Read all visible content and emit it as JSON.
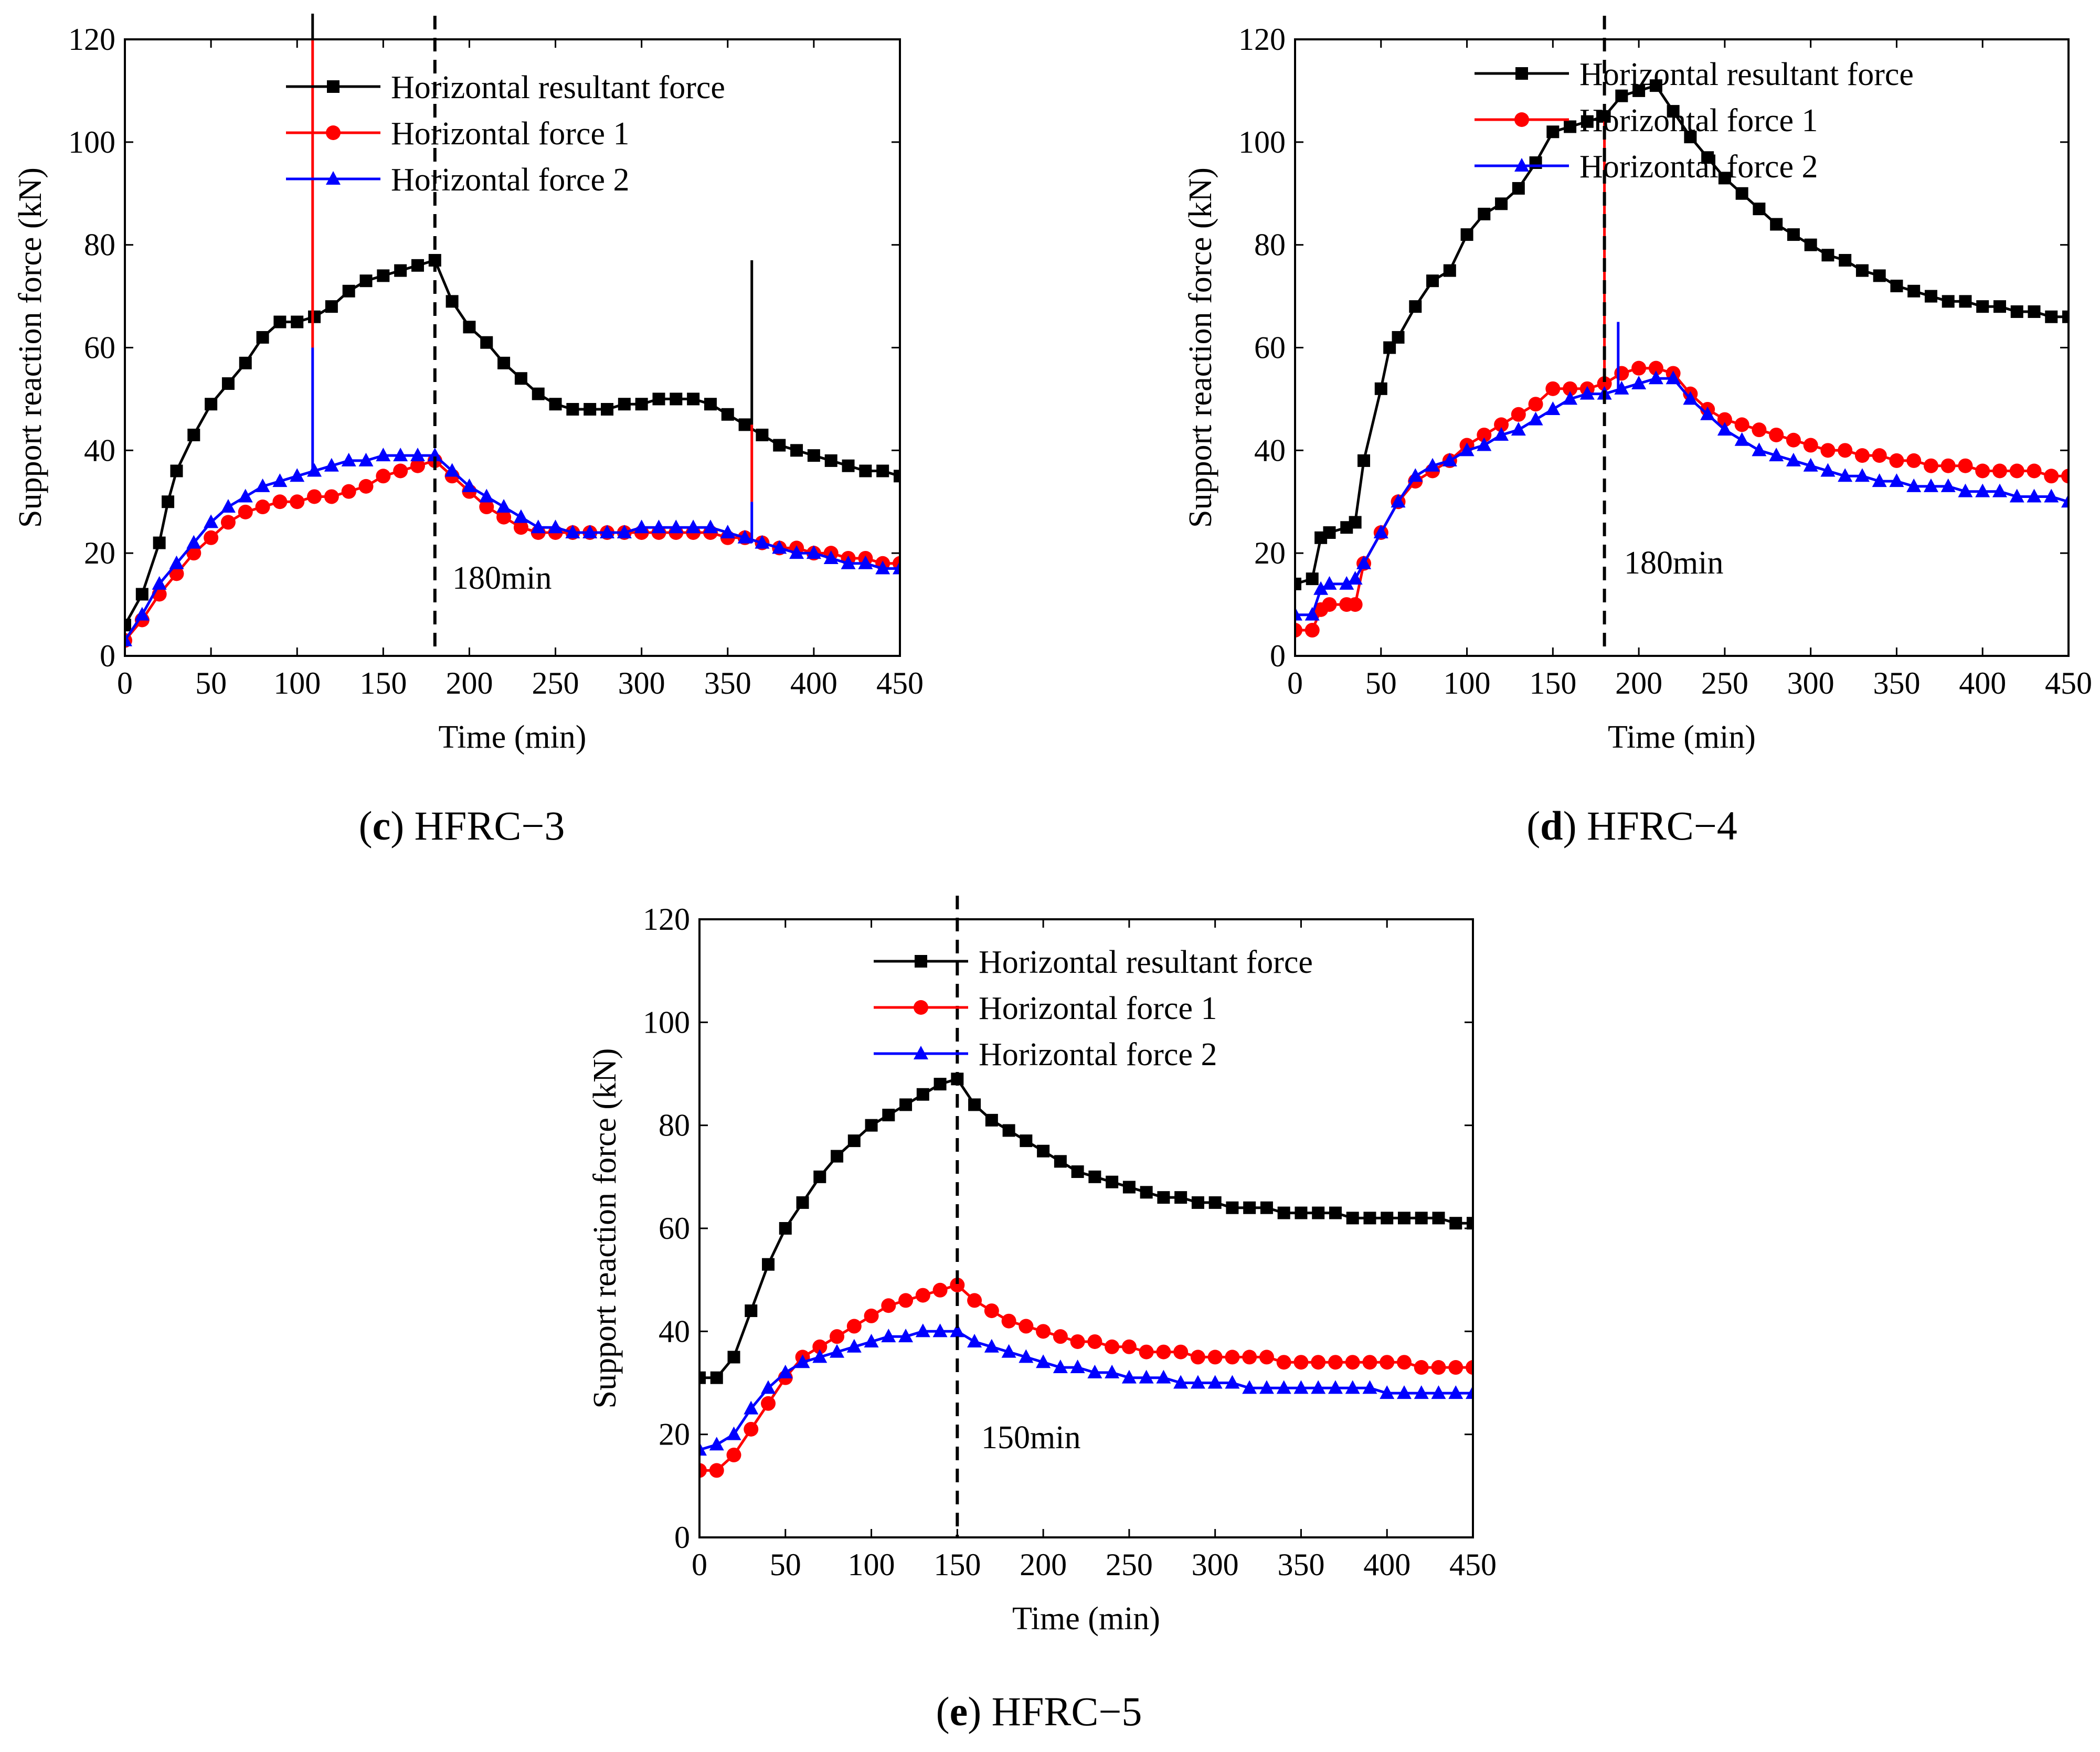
{
  "chart_data": [
    {
      "id": "c",
      "type": "line",
      "caption_letter": "(c)",
      "caption_name": "HFRC−3",
      "xlabel": "Time (min)",
      "ylabel": "Support reaction force (kN)",
      "xlim": [
        0,
        450
      ],
      "ylim": [
        0,
        120
      ],
      "xticks": [
        0,
        50,
        100,
        150,
        200,
        250,
        300,
        350,
        400,
        450
      ],
      "yticks": [
        0,
        20,
        40,
        60,
        80,
        100,
        120
      ],
      "vline": 180,
      "vline_label": "180min",
      "legend_position": "top-right",
      "series": [
        {
          "name": "Horizontal resultant force",
          "color": "#000000",
          "marker": "square",
          "x": [
            0,
            10,
            20,
            25,
            30,
            40,
            50,
            60,
            70,
            80,
            90,
            100,
            110,
            120,
            130,
            140,
            150,
            160,
            170,
            180,
            190,
            200,
            210,
            220,
            230,
            240,
            250,
            260,
            270,
            280,
            290,
            300,
            310,
            320,
            330,
            340,
            350,
            360,
            370,
            380,
            390,
            400,
            410,
            420,
            430,
            440,
            450
          ],
          "y": [
            6,
            12,
            22,
            30,
            36,
            43,
            49,
            53,
            57,
            62,
            65,
            65,
            66,
            68,
            71,
            73,
            74,
            75,
            76,
            77,
            69,
            64,
            61,
            57,
            54,
            51,
            49,
            48,
            48,
            48,
            49,
            49,
            50,
            50,
            50,
            49,
            47,
            45,
            43,
            41,
            40,
            39,
            38,
            37,
            36,
            36,
            35
          ]
        },
        {
          "name": "Horizontal force 1",
          "color": "#ff0000",
          "marker": "circle",
          "x": [
            0,
            10,
            20,
            30,
            40,
            50,
            60,
            70,
            80,
            90,
            100,
            110,
            120,
            130,
            140,
            150,
            160,
            170,
            180,
            190,
            200,
            210,
            220,
            230,
            240,
            250,
            260,
            270,
            280,
            290,
            300,
            310,
            320,
            330,
            340,
            350,
            360,
            370,
            380,
            390,
            400,
            410,
            420,
            430,
            440,
            450
          ],
          "y": [
            3,
            7,
            12,
            16,
            20,
            23,
            26,
            28,
            29,
            30,
            30,
            31,
            31,
            32,
            33,
            35,
            36,
            37,
            38,
            35,
            32,
            29,
            27,
            25,
            24,
            24,
            24,
            24,
            24,
            24,
            24,
            24,
            24,
            24,
            24,
            23,
            23,
            22,
            21,
            21,
            20,
            20,
            19,
            19,
            18,
            18
          ]
        },
        {
          "name": "Horizontal force 2",
          "color": "#0000ff",
          "marker": "triangle",
          "x": [
            0,
            10,
            20,
            30,
            40,
            50,
            60,
            70,
            80,
            90,
            100,
            110,
            120,
            130,
            140,
            150,
            160,
            170,
            180,
            190,
            200,
            210,
            220,
            230,
            240,
            250,
            260,
            270,
            280,
            290,
            300,
            310,
            320,
            330,
            340,
            350,
            360,
            370,
            380,
            390,
            400,
            410,
            420,
            430,
            440,
            450
          ],
          "y": [
            3,
            8,
            14,
            18,
            22,
            26,
            29,
            31,
            33,
            34,
            35,
            36,
            37,
            38,
            38,
            39,
            39,
            39,
            39,
            36,
            33,
            31,
            29,
            27,
            25,
            25,
            24,
            24,
            24,
            24,
            25,
            25,
            25,
            25,
            25,
            24,
            23,
            22,
            21,
            20,
            20,
            19,
            18,
            18,
            17,
            17
          ]
        }
      ],
      "spikes": [
        {
          "x": 109,
          "y0": 36,
          "y1": 60,
          "color": "#0000ff"
        },
        {
          "x": 109,
          "y0": 60,
          "y1": 120,
          "color": "#ff0000"
        },
        {
          "x": 109,
          "y0": 120,
          "y1": 125,
          "color": "#000000"
        },
        {
          "x": 364,
          "y0": 22,
          "y1": 30,
          "color": "#0000ff"
        },
        {
          "x": 364,
          "y0": 30,
          "y1": 45,
          "color": "#ff0000"
        },
        {
          "x": 364,
          "y0": 45,
          "y1": 77,
          "color": "#000000"
        }
      ]
    },
    {
      "id": "d",
      "type": "line",
      "caption_letter": "(d)",
      "caption_name": "HFRC−4",
      "xlabel": "Time (min)",
      "ylabel": "Support reaction force (kN)",
      "xlim": [
        0,
        450
      ],
      "ylim": [
        0,
        120
      ],
      "xticks": [
        0,
        50,
        100,
        150,
        200,
        250,
        300,
        350,
        400,
        450
      ],
      "yticks": [
        0,
        20,
        40,
        60,
        80,
        100,
        120
      ],
      "vline": 180,
      "vline_label": "180min",
      "legend_position": "top-right",
      "series": [
        {
          "name": "Horizontal resultant force",
          "color": "#000000",
          "marker": "square",
          "x": [
            0,
            10,
            15,
            20,
            30,
            35,
            40,
            50,
            55,
            60,
            70,
            80,
            90,
            100,
            110,
            120,
            130,
            140,
            150,
            160,
            170,
            180,
            190,
            200,
            210,
            220,
            230,
            240,
            250,
            260,
            270,
            280,
            290,
            300,
            310,
            320,
            330,
            340,
            350,
            360,
            370,
            380,
            390,
            400,
            410,
            420,
            430,
            440,
            450
          ],
          "y": [
            14,
            15,
            23,
            24,
            25,
            26,
            38,
            52,
            60,
            62,
            68,
            73,
            75,
            82,
            86,
            88,
            91,
            96,
            102,
            103,
            104,
            105,
            109,
            110,
            111,
            106,
            101,
            97,
            93,
            90,
            87,
            84,
            82,
            80,
            78,
            77,
            75,
            74,
            72,
            71,
            70,
            69,
            69,
            68,
            68,
            67,
            67,
            66,
            66
          ]
        },
        {
          "name": "Horizontal force 1",
          "color": "#ff0000",
          "marker": "circle",
          "x": [
            0,
            10,
            15,
            20,
            30,
            35,
            40,
            50,
            60,
            70,
            80,
            90,
            100,
            110,
            120,
            130,
            140,
            150,
            160,
            170,
            180,
            190,
            200,
            210,
            220,
            230,
            240,
            250,
            260,
            270,
            280,
            290,
            300,
            310,
            320,
            330,
            340,
            350,
            360,
            370,
            380,
            390,
            400,
            410,
            420,
            430,
            440,
            450
          ],
          "y": [
            5,
            5,
            9,
            10,
            10,
            10,
            18,
            24,
            30,
            34,
            36,
            38,
            41,
            43,
            45,
            47,
            49,
            52,
            52,
            52,
            53,
            55,
            56,
            56,
            55,
            51,
            48,
            46,
            45,
            44,
            43,
            42,
            41,
            40,
            40,
            39,
            39,
            38,
            38,
            37,
            37,
            37,
            36,
            36,
            36,
            36,
            35,
            35
          ]
        },
        {
          "name": "Horizontal force 2",
          "color": "#0000ff",
          "marker": "triangle",
          "x": [
            0,
            10,
            15,
            20,
            30,
            35,
            40,
            50,
            60,
            70,
            80,
            90,
            100,
            110,
            120,
            130,
            140,
            150,
            160,
            170,
            180,
            190,
            200,
            210,
            220,
            230,
            240,
            250,
            260,
            270,
            280,
            290,
            300,
            310,
            320,
            330,
            340,
            350,
            360,
            370,
            380,
            390,
            400,
            410,
            420,
            430,
            440,
            450
          ],
          "y": [
            8,
            8,
            13,
            14,
            14,
            15,
            18,
            24,
            30,
            35,
            37,
            38,
            40,
            41,
            43,
            44,
            46,
            48,
            50,
            51,
            51,
            52,
            53,
            54,
            54,
            50,
            47,
            44,
            42,
            40,
            39,
            38,
            37,
            36,
            35,
            35,
            34,
            34,
            33,
            33,
            33,
            32,
            32,
            32,
            31,
            31,
            31,
            30
          ]
        }
      ],
      "spikes": [
        {
          "x": 180,
          "y0": 53,
          "y1": 104,
          "color": "#ff0000"
        },
        {
          "x": 188,
          "y0": 52,
          "y1": 65,
          "color": "#0000ff"
        }
      ]
    },
    {
      "id": "e",
      "type": "line",
      "caption_letter": "(e)",
      "caption_name": "HFRC−5",
      "xlabel": "Time (min)",
      "ylabel": "Support reaction force (kN)",
      "xlim": [
        0,
        450
      ],
      "ylim": [
        0,
        120
      ],
      "xticks": [
        0,
        50,
        100,
        150,
        200,
        250,
        300,
        350,
        400,
        450
      ],
      "yticks": [
        0,
        20,
        40,
        60,
        80,
        100,
        120
      ],
      "vline": 150,
      "vline_label": "150min",
      "legend_position": "top-right",
      "series": [
        {
          "name": "Horizontal resultant force",
          "color": "#000000",
          "marker": "square",
          "x": [
            0,
            10,
            20,
            30,
            40,
            50,
            60,
            70,
            80,
            90,
            100,
            110,
            120,
            130,
            140,
            150,
            160,
            170,
            180,
            190,
            200,
            210,
            220,
            230,
            240,
            250,
            260,
            270,
            280,
            290,
            300,
            310,
            320,
            330,
            340,
            350,
            360,
            370,
            380,
            390,
            400,
            410,
            420,
            430,
            440,
            450
          ],
          "y": [
            31,
            31,
            35,
            44,
            53,
            60,
            65,
            70,
            74,
            77,
            80,
            82,
            84,
            86,
            88,
            89,
            84,
            81,
            79,
            77,
            75,
            73,
            71,
            70,
            69,
            68,
            67,
            66,
            66,
            65,
            65,
            64,
            64,
            64,
            63,
            63,
            63,
            63,
            62,
            62,
            62,
            62,
            62,
            62,
            61,
            61
          ]
        },
        {
          "name": "Horizontal force 1",
          "color": "#ff0000",
          "marker": "circle",
          "x": [
            0,
            10,
            20,
            30,
            40,
            50,
            60,
            70,
            80,
            90,
            100,
            110,
            120,
            130,
            140,
            150,
            160,
            170,
            180,
            190,
            200,
            210,
            220,
            230,
            240,
            250,
            260,
            270,
            280,
            290,
            300,
            310,
            320,
            330,
            340,
            350,
            360,
            370,
            380,
            390,
            400,
            410,
            420,
            430,
            440,
            450
          ],
          "y": [
            13,
            13,
            16,
            21,
            26,
            31,
            35,
            37,
            39,
            41,
            43,
            45,
            46,
            47,
            48,
            49,
            46,
            44,
            42,
            41,
            40,
            39,
            38,
            38,
            37,
            37,
            36,
            36,
            36,
            35,
            35,
            35,
            35,
            35,
            34,
            34,
            34,
            34,
            34,
            34,
            34,
            34,
            33,
            33,
            33,
            33
          ]
        },
        {
          "name": "Horizontal force 2",
          "color": "#0000ff",
          "marker": "triangle",
          "x": [
            0,
            10,
            20,
            30,
            40,
            50,
            60,
            70,
            80,
            90,
            100,
            110,
            120,
            130,
            140,
            150,
            160,
            170,
            180,
            190,
            200,
            210,
            220,
            230,
            240,
            250,
            260,
            270,
            280,
            290,
            300,
            310,
            320,
            330,
            340,
            350,
            360,
            370,
            380,
            390,
            400,
            410,
            420,
            430,
            440,
            450
          ],
          "y": [
            17,
            18,
            20,
            25,
            29,
            32,
            34,
            35,
            36,
            37,
            38,
            39,
            39,
            40,
            40,
            40,
            38,
            37,
            36,
            35,
            34,
            33,
            33,
            32,
            32,
            31,
            31,
            31,
            30,
            30,
            30,
            30,
            29,
            29,
            29,
            29,
            29,
            29,
            29,
            29,
            28,
            28,
            28,
            28,
            28,
            28
          ]
        }
      ],
      "spikes": []
    }
  ]
}
